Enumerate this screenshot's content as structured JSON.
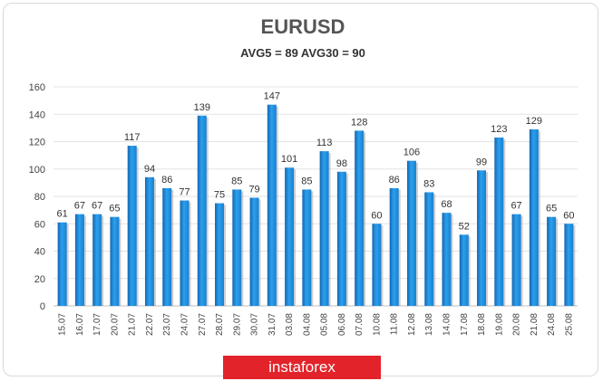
{
  "chart_data": {
    "type": "bar",
    "title": "EURUSD",
    "subtitle": "AVG5 = 89 AVG30 = 90",
    "xlabel": "",
    "ylabel": "",
    "ylim": [
      0,
      160
    ],
    "yticks": [
      0,
      20,
      40,
      60,
      80,
      100,
      120,
      140,
      160
    ],
    "grid": true,
    "bar_color": "#1f93e0",
    "categories": [
      "15.07",
      "16.07",
      "17.07",
      "20.07",
      "21.07",
      "22.07",
      "23.07",
      "24.07",
      "27.07",
      "28.07",
      "29.07",
      "30.07",
      "31.07",
      "03.08",
      "04.08",
      "05.08",
      "06.08",
      "07.08",
      "10.08",
      "11.08",
      "12.08",
      "13.08",
      "14.08",
      "17.08",
      "18.08",
      "19.08",
      "20.08",
      "21.08",
      "24.08",
      "25.08"
    ],
    "values": [
      61,
      67,
      67,
      65,
      117,
      94,
      86,
      77,
      139,
      75,
      85,
      79,
      147,
      101,
      85,
      113,
      98,
      128,
      60,
      86,
      106,
      83,
      68,
      52,
      99,
      123,
      67,
      129,
      65,
      60
    ]
  },
  "watermark": "instaforex"
}
